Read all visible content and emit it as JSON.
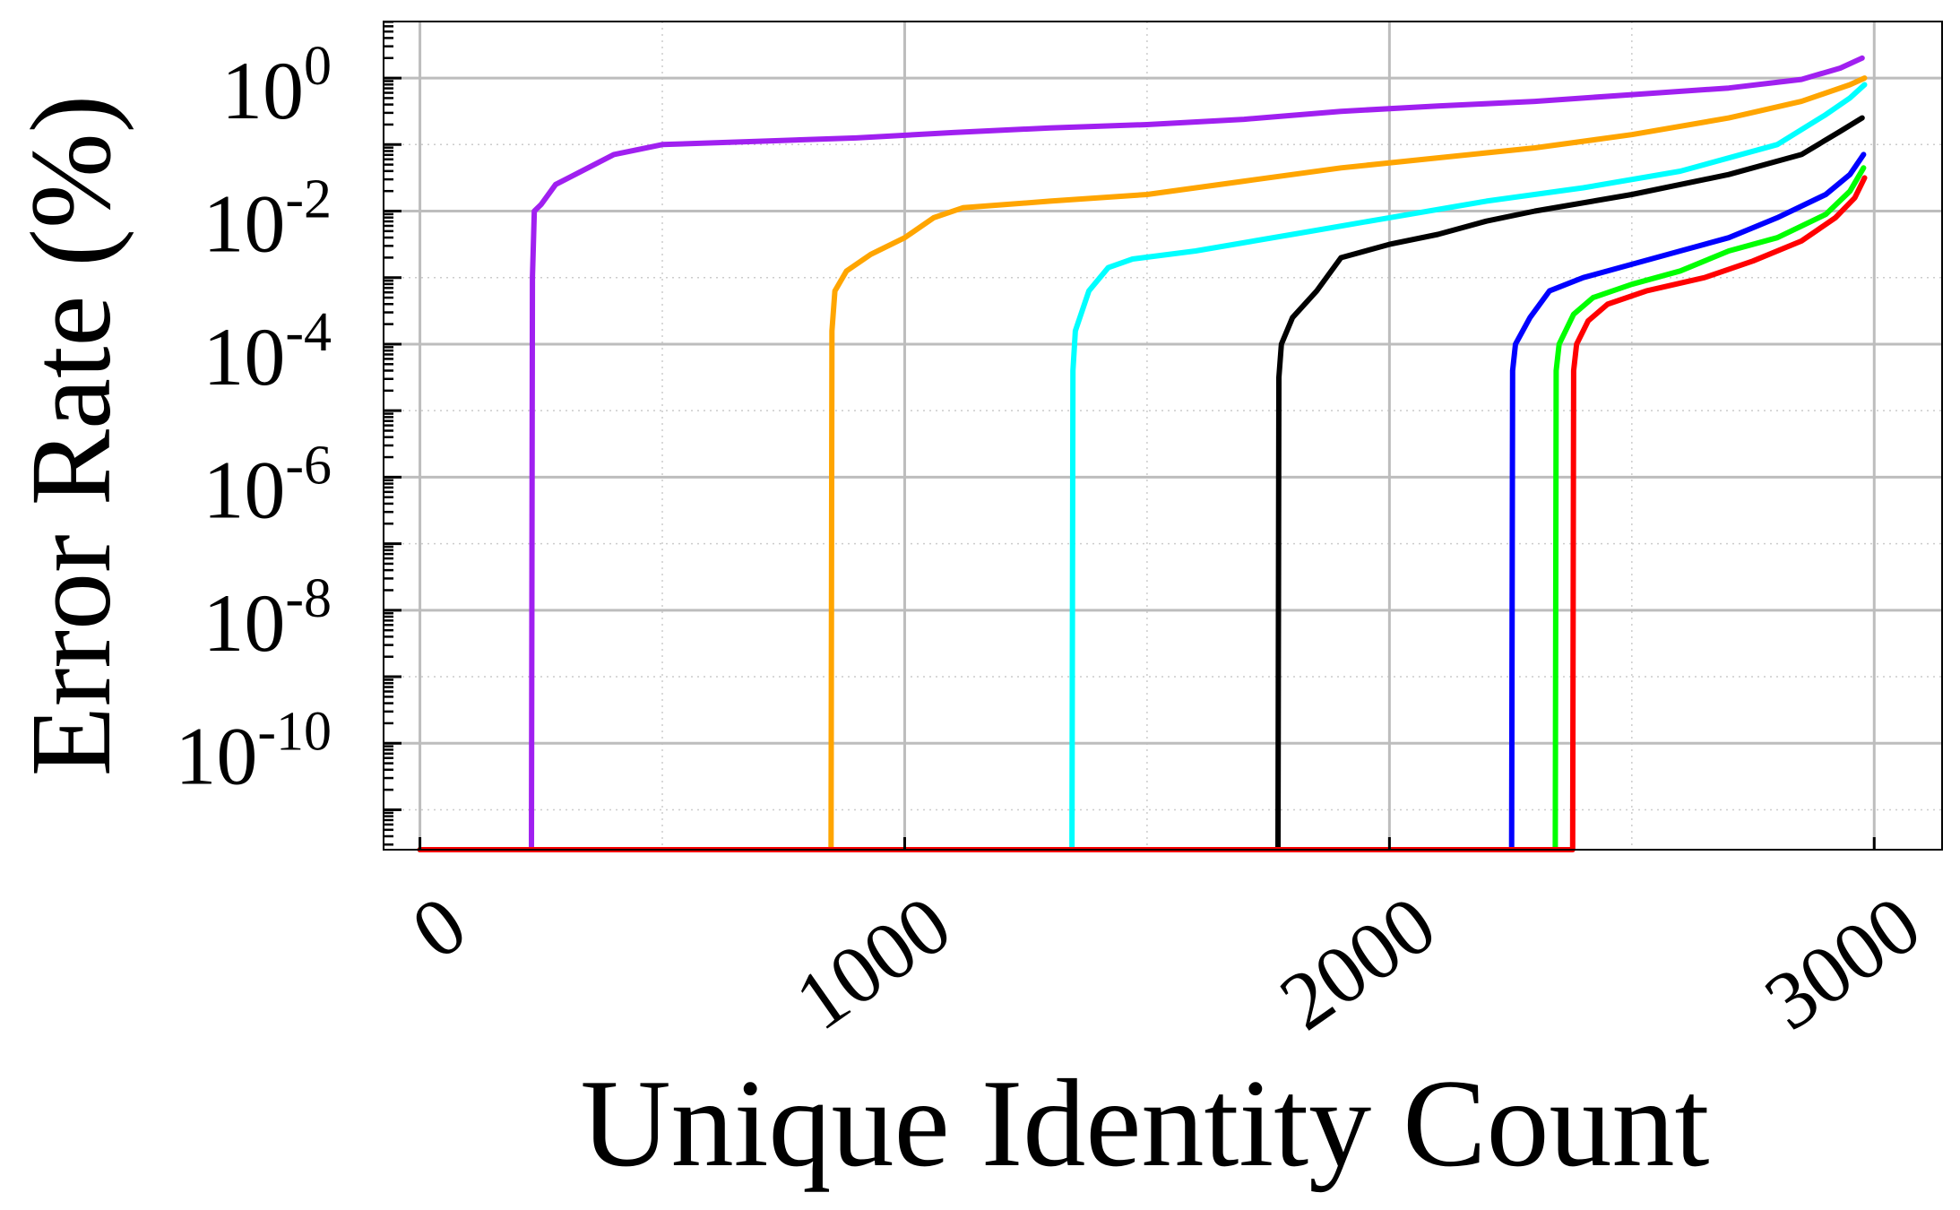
{
  "chart_data": {
    "type": "line",
    "xlabel": "Unique Identity Count",
    "ylabel": "Error Rate (%)",
    "xlim": [
      -75,
      3140
    ],
    "ylim_log10": [
      -11.6,
      0.85
    ],
    "y_scale": "log",
    "grid": true,
    "x_ticks": [
      {
        "value": 0,
        "label": "0"
      },
      {
        "value": 1000,
        "label": "1000"
      },
      {
        "value": 2000,
        "label": "2000"
      },
      {
        "value": 3000,
        "label": "3000"
      }
    ],
    "y_ticks": [
      {
        "exp": 0,
        "base": "10",
        "sup": "0"
      },
      {
        "exp": -2,
        "base": "10",
        "sup": "-2"
      },
      {
        "exp": -4,
        "base": "10",
        "sup": "-4"
      },
      {
        "exp": -6,
        "base": "10",
        "sup": "-6"
      },
      {
        "exp": -8,
        "base": "10",
        "sup": "-8"
      },
      {
        "exp": -10,
        "base": "10",
        "sup": "-10"
      }
    ],
    "series": [
      {
        "color": "#a020f0",
        "points": [
          [
            0,
            -11.6
          ],
          [
            230,
            -11.6
          ],
          [
            232,
            -3.0
          ],
          [
            236,
            -2.0
          ],
          [
            250,
            -1.9
          ],
          [
            280,
            -1.6
          ],
          [
            320,
            -1.45
          ],
          [
            400,
            -1.15
          ],
          [
            500,
            -1.0
          ],
          [
            700,
            -0.95
          ],
          [
            900,
            -0.9
          ],
          [
            1100,
            -0.82
          ],
          [
            1300,
            -0.75
          ],
          [
            1500,
            -0.7
          ],
          [
            1700,
            -0.62
          ],
          [
            1900,
            -0.5
          ],
          [
            2100,
            -0.42
          ],
          [
            2300,
            -0.35
          ],
          [
            2500,
            -0.25
          ],
          [
            2700,
            -0.15
          ],
          [
            2850,
            -0.02
          ],
          [
            2930,
            0.15
          ],
          [
            2975,
            0.3
          ]
        ]
      },
      {
        "color": "#ffa500",
        "points": [
          [
            0,
            -11.6
          ],
          [
            848,
            -11.6
          ],
          [
            850,
            -3.8
          ],
          [
            856,
            -3.2
          ],
          [
            880,
            -2.9
          ],
          [
            930,
            -2.65
          ],
          [
            1000,
            -2.4
          ],
          [
            1060,
            -2.1
          ],
          [
            1120,
            -1.95
          ],
          [
            1300,
            -1.85
          ],
          [
            1500,
            -1.75
          ],
          [
            1700,
            -1.55
          ],
          [
            1900,
            -1.35
          ],
          [
            2100,
            -1.2
          ],
          [
            2300,
            -1.05
          ],
          [
            2500,
            -0.85
          ],
          [
            2700,
            -0.6
          ],
          [
            2850,
            -0.35
          ],
          [
            2950,
            -0.1
          ],
          [
            2980,
            0.0
          ]
        ]
      },
      {
        "color": "#00ffff",
        "points": [
          [
            0,
            -11.6
          ],
          [
            1345,
            -11.6
          ],
          [
            1347,
            -4.4
          ],
          [
            1352,
            -3.8
          ],
          [
            1380,
            -3.2
          ],
          [
            1420,
            -2.85
          ],
          [
            1470,
            -2.72
          ],
          [
            1600,
            -2.6
          ],
          [
            1800,
            -2.35
          ],
          [
            2000,
            -2.1
          ],
          [
            2200,
            -1.85
          ],
          [
            2400,
            -1.65
          ],
          [
            2600,
            -1.4
          ],
          [
            2800,
            -1.0
          ],
          [
            2900,
            -0.55
          ],
          [
            2950,
            -0.3
          ],
          [
            2980,
            -0.1
          ]
        ]
      },
      {
        "color": "#000000",
        "points": [
          [
            0,
            -11.6
          ],
          [
            1770,
            -11.6
          ],
          [
            1772,
            -4.5
          ],
          [
            1777,
            -4.0
          ],
          [
            1800,
            -3.6
          ],
          [
            1850,
            -3.2
          ],
          [
            1900,
            -2.7
          ],
          [
            2000,
            -2.5
          ],
          [
            2100,
            -2.35
          ],
          [
            2200,
            -2.15
          ],
          [
            2300,
            -2.0
          ],
          [
            2500,
            -1.75
          ],
          [
            2700,
            -1.45
          ],
          [
            2850,
            -1.15
          ],
          [
            2930,
            -0.8
          ],
          [
            2975,
            -0.6
          ]
        ]
      },
      {
        "color": "#0000ff",
        "points": [
          [
            0,
            -11.6
          ],
          [
            2252,
            -11.6
          ],
          [
            2254,
            -4.4
          ],
          [
            2260,
            -4.0
          ],
          [
            2290,
            -3.6
          ],
          [
            2330,
            -3.2
          ],
          [
            2400,
            -3.0
          ],
          [
            2500,
            -2.8
          ],
          [
            2600,
            -2.6
          ],
          [
            2700,
            -2.4
          ],
          [
            2800,
            -2.1
          ],
          [
            2900,
            -1.75
          ],
          [
            2950,
            -1.45
          ],
          [
            2978,
            -1.15
          ]
        ]
      },
      {
        "color": "#00ff00",
        "points": [
          [
            0,
            -11.6
          ],
          [
            2342,
            -11.6
          ],
          [
            2344,
            -4.4
          ],
          [
            2350,
            -4.0
          ],
          [
            2380,
            -3.55
          ],
          [
            2420,
            -3.3
          ],
          [
            2500,
            -3.1
          ],
          [
            2600,
            -2.9
          ],
          [
            2700,
            -2.6
          ],
          [
            2800,
            -2.4
          ],
          [
            2900,
            -2.05
          ],
          [
            2950,
            -1.7
          ],
          [
            2978,
            -1.35
          ]
        ]
      },
      {
        "color": "#ff0000",
        "points": [
          [
            0,
            -11.6
          ],
          [
            2378,
            -11.6
          ],
          [
            2380,
            -4.4
          ],
          [
            2386,
            -4.0
          ],
          [
            2410,
            -3.65
          ],
          [
            2450,
            -3.4
          ],
          [
            2530,
            -3.2
          ],
          [
            2650,
            -3.0
          ],
          [
            2750,
            -2.75
          ],
          [
            2850,
            -2.45
          ],
          [
            2920,
            -2.1
          ],
          [
            2960,
            -1.8
          ],
          [
            2980,
            -1.5
          ]
        ]
      }
    ]
  }
}
